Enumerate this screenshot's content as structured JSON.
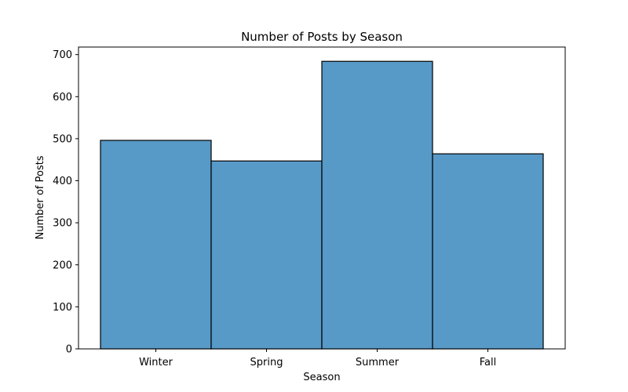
{
  "chart_data": {
    "type": "bar",
    "title": "Number of Posts by Season",
    "xlabel": "Season",
    "ylabel": "Number of Posts",
    "categories": [
      "Winter",
      "Spring",
      "Summer",
      "Fall"
    ],
    "values": [
      496,
      447,
      684,
      464
    ],
    "ylim": [
      0,
      718
    ],
    "yticks": [
      0,
      100,
      200,
      300,
      400,
      500,
      600,
      700
    ],
    "grid": false,
    "bar_color": "#5799c7",
    "bar_edge_color": "#000000"
  }
}
